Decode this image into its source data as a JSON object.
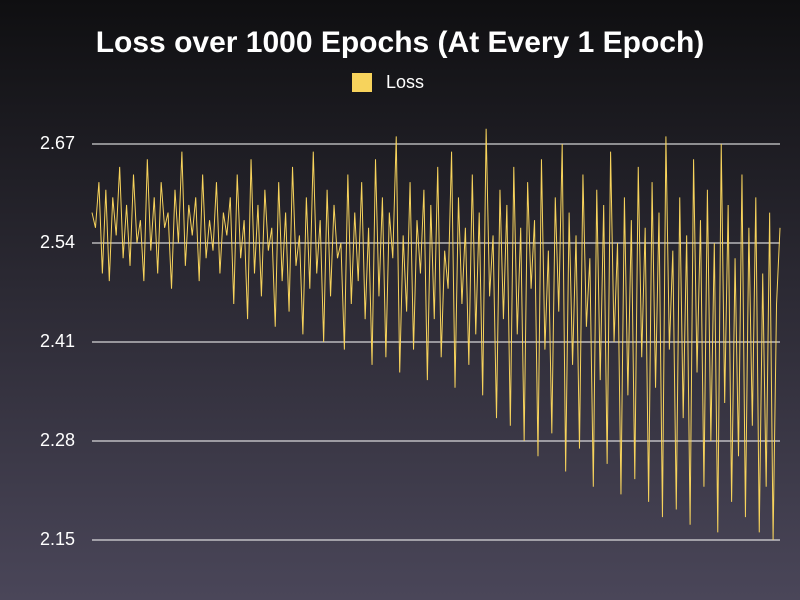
{
  "chart_data": {
    "type": "line",
    "title": "Loss over 1000 Epochs (At Every 1 Epoch)",
    "series": [
      {
        "name": "Loss",
        "color": "#f7d35c",
        "values": [
          2.58,
          2.56,
          2.62,
          2.5,
          2.61,
          2.49,
          2.6,
          2.55,
          2.64,
          2.52,
          2.59,
          2.51,
          2.63,
          2.54,
          2.57,
          2.49,
          2.65,
          2.53,
          2.6,
          2.5,
          2.62,
          2.56,
          2.58,
          2.48,
          2.61,
          2.54,
          2.66,
          2.51,
          2.59,
          2.55,
          2.6,
          2.49,
          2.63,
          2.52,
          2.57,
          2.53,
          2.62,
          2.5,
          2.58,
          2.55,
          2.6,
          2.46,
          2.63,
          2.52,
          2.57,
          2.44,
          2.65,
          2.5,
          2.59,
          2.47,
          2.61,
          2.53,
          2.56,
          2.43,
          2.62,
          2.49,
          2.58,
          2.45,
          2.64,
          2.51,
          2.55,
          2.42,
          2.6,
          2.48,
          2.66,
          2.5,
          2.57,
          2.41,
          2.61,
          2.47,
          2.59,
          2.52,
          2.54,
          2.4,
          2.63,
          2.46,
          2.58,
          2.49,
          2.62,
          2.44,
          2.56,
          2.38,
          2.65,
          2.47,
          2.6,
          2.39,
          2.58,
          2.52,
          2.68,
          2.37,
          2.55,
          2.45,
          2.62,
          2.4,
          2.57,
          2.5,
          2.61,
          2.36,
          2.59,
          2.44,
          2.64,
          2.39,
          2.53,
          2.48,
          2.66,
          2.35,
          2.6,
          2.46,
          2.56,
          2.38,
          2.63,
          2.42,
          2.58,
          2.34,
          2.69,
          2.47,
          2.55,
          2.31,
          2.61,
          2.44,
          2.59,
          2.3,
          2.64,
          2.42,
          2.56,
          2.28,
          2.62,
          2.48,
          2.57,
          2.26,
          2.65,
          2.4,
          2.53,
          2.29,
          2.6,
          2.45,
          2.67,
          2.24,
          2.58,
          2.38,
          2.55,
          2.27,
          2.63,
          2.43,
          2.52,
          2.22,
          2.61,
          2.36,
          2.59,
          2.25,
          2.66,
          2.41,
          2.54,
          2.21,
          2.6,
          2.34,
          2.57,
          2.23,
          2.64,
          2.39,
          2.56,
          2.2,
          2.62,
          2.35,
          2.58,
          2.18,
          2.68,
          2.4,
          2.53,
          2.19,
          2.6,
          2.31,
          2.55,
          2.17,
          2.65,
          2.37,
          2.57,
          2.22,
          2.61,
          2.28,
          2.54,
          2.16,
          2.67,
          2.33,
          2.59,
          2.2,
          2.52,
          2.26,
          2.63,
          2.18,
          2.56,
          2.3,
          2.6,
          2.16,
          2.5,
          2.22,
          2.58,
          2.15,
          2.46,
          2.56
        ]
      }
    ],
    "ylim": [
      2.15,
      2.695
    ],
    "yticks": [
      {
        "value": 2.15,
        "label": "2.15"
      },
      {
        "value": 2.28,
        "label": "2.28"
      },
      {
        "value": 2.41,
        "label": "2.41"
      },
      2.54,
      2.67
    ],
    "grid": true,
    "legend": "top"
  }
}
